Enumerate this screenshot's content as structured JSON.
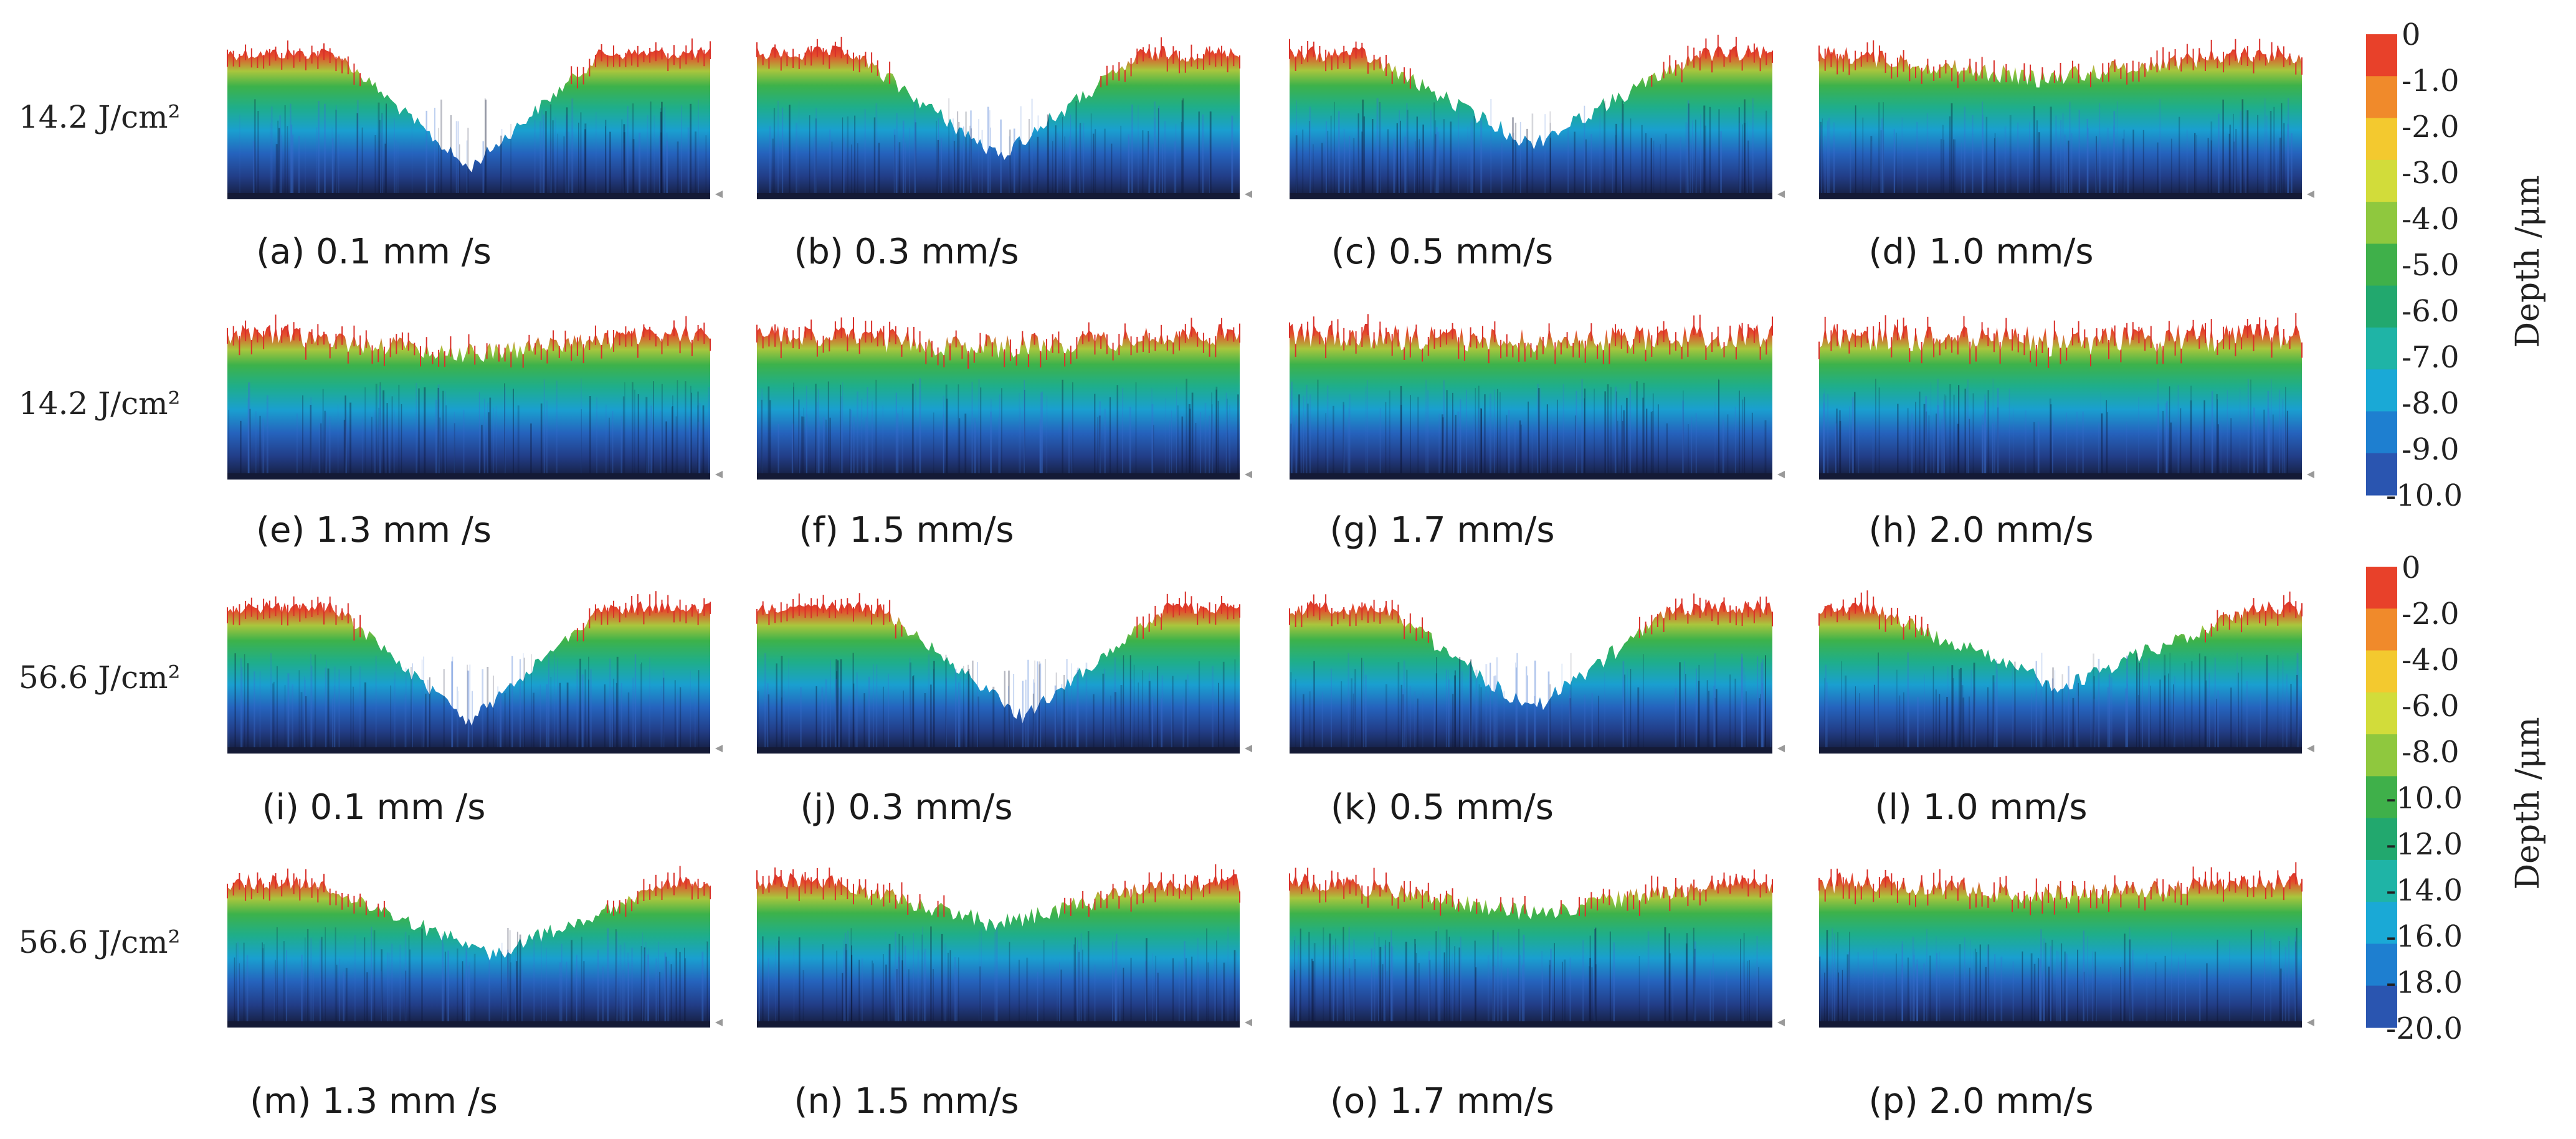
{
  "rows": [
    {
      "label": "14.2 J/cm²",
      "scale": "top"
    },
    {
      "label": "14.2 J/cm²",
      "scale": "top"
    },
    {
      "label": "56.6 J/cm²",
      "scale": "bottom"
    },
    {
      "label": "56.6 J/cm²",
      "scale": "bottom"
    }
  ],
  "panels": [
    {
      "caption": "(a) 0.1 mm /s",
      "trench_depth": 0.95,
      "trench_width": 0.55,
      "trench_center": 0.5,
      "roughness": 0.25
    },
    {
      "caption": "(b) 0.3 mm/s",
      "trench_depth": 0.85,
      "trench_width": 0.6,
      "trench_center": 0.5,
      "roughness": 0.3
    },
    {
      "caption": "(c) 0.5 mm/s",
      "trench_depth": 0.75,
      "trench_width": 0.7,
      "trench_center": 0.5,
      "roughness": 0.3
    },
    {
      "caption": "(d) 1.0 mm/s",
      "trench_depth": 0.2,
      "trench_width": 0.8,
      "trench_center": 0.45,
      "roughness": 0.35
    },
    {
      "caption": "(e) 1.3 mm /s",
      "trench_depth": 0.15,
      "trench_width": 0.8,
      "trench_center": 0.5,
      "roughness": 0.4
    },
    {
      "caption": "(f) 1.5 mm/s",
      "trench_depth": 0.1,
      "trench_width": 0.8,
      "trench_center": 0.5,
      "roughness": 0.45
    },
    {
      "caption": "(g) 1.7 mm/s",
      "trench_depth": 0.05,
      "trench_width": 0.8,
      "trench_center": 0.5,
      "roughness": 0.5
    },
    {
      "caption": "(h) 2.0 mm/s",
      "trench_depth": 0.05,
      "trench_width": 0.8,
      "trench_center": 0.5,
      "roughness": 0.55
    },
    {
      "caption": "(i) 0.1 mm /s",
      "trench_depth": 0.95,
      "trench_width": 0.55,
      "trench_center": 0.5,
      "roughness": 0.25
    },
    {
      "caption": "(j) 0.3 mm/s",
      "trench_depth": 0.9,
      "trench_width": 0.6,
      "trench_center": 0.55,
      "roughness": 0.25
    },
    {
      "caption": "(k) 0.5 mm/s",
      "trench_depth": 0.85,
      "trench_width": 0.6,
      "trench_center": 0.5,
      "roughness": 0.3
    },
    {
      "caption": "(l) 1.0 mm/s",
      "trench_depth": 0.65,
      "trench_width": 0.8,
      "trench_center": 0.5,
      "roughness": 0.3
    },
    {
      "caption": "(m) 1.3 mm /s",
      "trench_depth": 0.6,
      "trench_width": 0.75,
      "trench_center": 0.55,
      "roughness": 0.3
    },
    {
      "caption": "(n) 1.5 mm/s",
      "trench_depth": 0.35,
      "trench_width": 0.7,
      "trench_center": 0.5,
      "roughness": 0.35
    },
    {
      "caption": "(o) 1.7 mm/s",
      "trench_depth": 0.25,
      "trench_width": 0.8,
      "trench_center": 0.5,
      "roughness": 0.35
    },
    {
      "caption": "(p) 2.0 mm/s",
      "trench_depth": 0.1,
      "trench_width": 0.8,
      "trench_center": 0.5,
      "roughness": 0.4
    }
  ],
  "colorbars": [
    {
      "title": "Depth /μm",
      "ticks": [
        "0",
        "-1.0",
        "-2.0",
        "-3.0",
        "-4.0",
        "-5.0",
        "-6.0",
        "-7.0",
        "-8.0",
        "-9.0",
        "-10.0"
      ]
    },
    {
      "title": "Depth /μm",
      "ticks": [
        "0",
        "-2.0",
        "-4.0",
        "-6.0",
        "-8.0",
        "-10.0",
        "-12.0",
        "-14.0",
        "-16.0",
        "-18.0",
        "-20.0"
      ]
    }
  ],
  "colors": {
    "colormap": [
      "#e8412a",
      "#f08a2b",
      "#f3c92f",
      "#d2dc3a",
      "#8fc83e",
      "#3fb04a",
      "#22a86e",
      "#1fb4a6",
      "#1aa9d6",
      "#1e7fd0",
      "#2a55b0"
    ],
    "floor": "#141a36"
  }
}
